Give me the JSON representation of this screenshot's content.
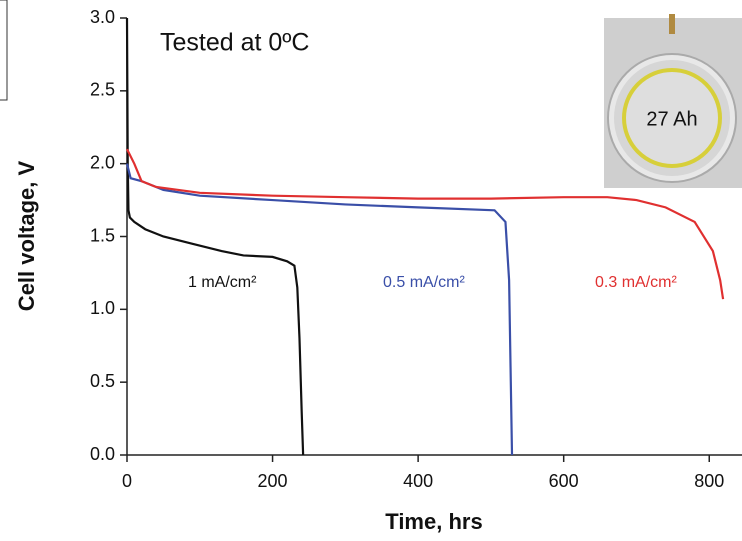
{
  "chart_data": {
    "type": "line",
    "xlabel": "Time, hrs",
    "ylabel": "Cell voltage, V",
    "annotations": [
      "Tested at 0ºC",
      "27 Ah"
    ],
    "xlim": [
      0,
      845
    ],
    "ylim": [
      0,
      3
    ],
    "xticks": [
      0,
      200,
      400,
      600,
      800
    ],
    "yticks": [
      {
        "value": 0,
        "label": "0.0"
      },
      0.5,
      {
        "value": 1,
        "label": "1.0"
      },
      1.5,
      {
        "value": 2,
        "label": "2.0"
      },
      2.5,
      {
        "value": 3,
        "label": "3.0"
      }
    ],
    "series": [
      {
        "name": "1 mA/cm²",
        "color": "#111111",
        "x": [
          0,
          1,
          2,
          4,
          10,
          25,
          50,
          90,
          130,
          160,
          200,
          220,
          230,
          234,
          237,
          240,
          242
        ],
        "values": [
          3.0,
          2.0,
          1.68,
          1.63,
          1.6,
          1.55,
          1.5,
          1.45,
          1.4,
          1.37,
          1.36,
          1.33,
          1.3,
          1.15,
          0.8,
          0.3,
          0
        ]
      },
      {
        "name": "0.5 mA/cm²",
        "color": "#3a4fa8",
        "x": [
          0,
          5,
          20,
          50,
          100,
          200,
          300,
          400,
          505,
          520,
          525,
          527,
          529
        ],
        "values": [
          2.0,
          1.9,
          1.88,
          1.82,
          1.78,
          1.75,
          1.72,
          1.7,
          1.68,
          1.6,
          1.2,
          0.6,
          0
        ]
      },
      {
        "name": "0.3 mA/cm²",
        "color": "#e03030",
        "x": [
          0,
          10,
          20,
          40,
          100,
          200,
          300,
          400,
          500,
          600,
          660,
          700,
          740,
          780,
          805,
          815,
          819
        ],
        "values": [
          2.1,
          2.0,
          1.88,
          1.84,
          1.8,
          1.78,
          1.77,
          1.76,
          1.76,
          1.77,
          1.77,
          1.75,
          1.7,
          1.6,
          1.4,
          1.2,
          1.07
        ]
      }
    ]
  }
}
